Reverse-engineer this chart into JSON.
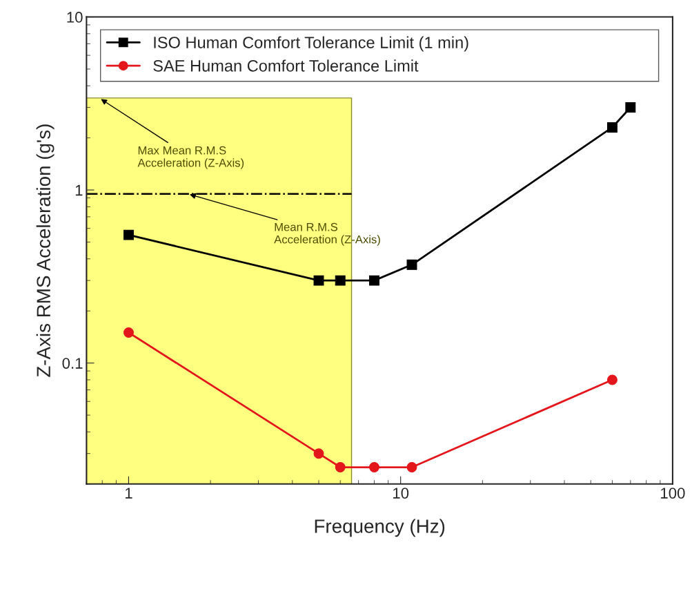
{
  "chart_data": {
    "type": "line",
    "xlabel": "Frequency (Hz)",
    "ylabel": "Z-Axis RMS Acceleration (g's)",
    "log": "xy",
    "xlim": [
      0.7,
      100
    ],
    "ylim": [
      0.02,
      10
    ],
    "xticks": [
      1,
      10,
      100
    ],
    "yticks": [
      0.1,
      1,
      10
    ],
    "grid": false,
    "legend": "top",
    "series": [
      {
        "type": "area",
        "color": "#ffff80",
        "x": [
          0.7,
          6.6
        ],
        "values": [
          3.4,
          3.4
        ],
        "marker": "none"
      },
      {
        "name": "ISO Human Comfort Tolerance Limit (1 min)",
        "color": "#000000",
        "marker": "square",
        "x": [
          1,
          5,
          6,
          8,
          11,
          60,
          70
        ],
        "values": [
          0.55,
          0.3,
          0.3,
          0.3,
          0.37,
          2.3,
          3.0
        ]
      },
      {
        "name": "SAE Human Comfort Tolerance Limit",
        "color": "#e3161c",
        "marker": "circle",
        "x": [
          1,
          5,
          6,
          8,
          11,
          60
        ],
        "values": [
          0.15,
          0.03,
          0.025,
          0.025,
          0.025,
          0.08
        ]
      }
    ],
    "ref_lines": [
      {
        "axis": "y",
        "value": 0.95,
        "line_style": "dashdot",
        "color": "#000000"
      }
    ],
    "annotations": [
      {
        "text": "Max Mean R.M.S\nAcceleration (Z-Axis)",
        "x": 0.78,
        "y": 3.4
      },
      {
        "text": "Mean R.M.S\nAcceleration (Z-Axis)",
        "x": 1.65,
        "y": 0.95
      }
    ]
  }
}
